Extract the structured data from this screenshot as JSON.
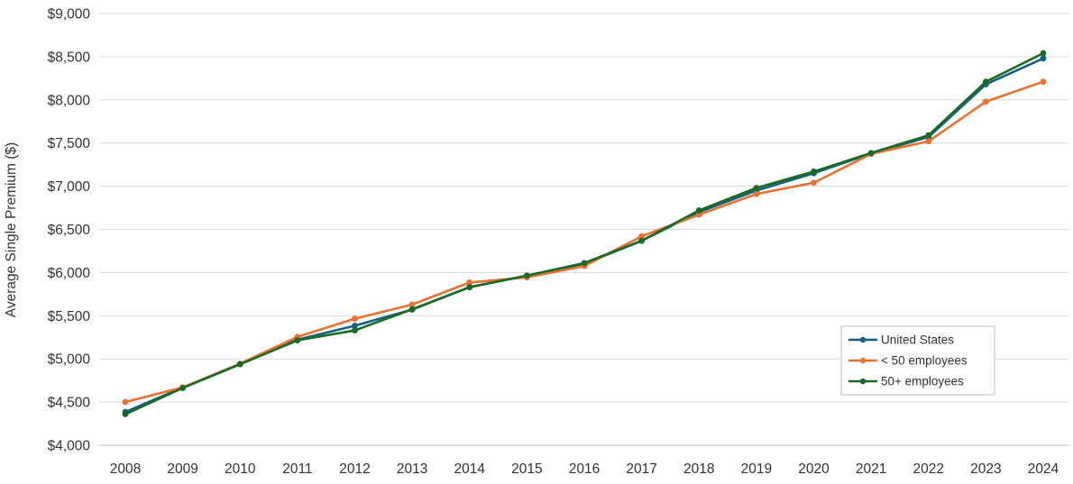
{
  "chart_data": {
    "type": "line",
    "title": "",
    "xlabel": "",
    "ylabel": "Average Single Premium ($)",
    "categories": [
      "2008",
      "2009",
      "2010",
      "2011",
      "2012",
      "2013",
      "2014",
      "2015",
      "2016",
      "2017",
      "2018",
      "2019",
      "2020",
      "2021",
      "2022",
      "2023",
      "2024"
    ],
    "series": [
      {
        "name": "United States",
        "color": "#156082",
        "values": [
          4386,
          4669,
          4940,
          5222,
          5384,
          5571,
          5832,
          5963,
          6101,
          6368,
          6700,
          6950,
          7150,
          7380,
          7570,
          8180,
          8480
        ]
      },
      {
        "name": "< 50 employees",
        "color": "#E97132",
        "values": [
          4501,
          4670,
          4945,
          5255,
          5465,
          5630,
          5885,
          5945,
          6075,
          6420,
          6670,
          6910,
          7040,
          7375,
          7520,
          7980,
          8210
        ]
      },
      {
        "name": "50+ employees",
        "color": "#196B24",
        "values": [
          4360,
          4663,
          4938,
          5215,
          5330,
          5575,
          5830,
          5965,
          6110,
          6368,
          6720,
          6980,
          7170,
          7385,
          7590,
          8210,
          8540
        ]
      }
    ],
    "ylim": [
      4000,
      9000
    ],
    "yticks": [
      4000,
      4500,
      5000,
      5500,
      6000,
      6500,
      7000,
      7500,
      8000,
      8500,
      9000
    ],
    "ytick_labels": [
      "$4,000",
      "$4,500",
      "$5,000",
      "$5,500",
      "$6,000",
      "$6,500",
      "$7,000",
      "$7,500",
      "$8,000",
      "$8,500",
      "$9,000"
    ],
    "grid": true,
    "legend_position": "bottom-right",
    "colors": {
      "gridline": "#D9D9D9",
      "axis_line": "#BFBFBF",
      "tick_text": "#333333",
      "legend_border": "#BFBFBF",
      "background": "#FFFFFF"
    }
  }
}
